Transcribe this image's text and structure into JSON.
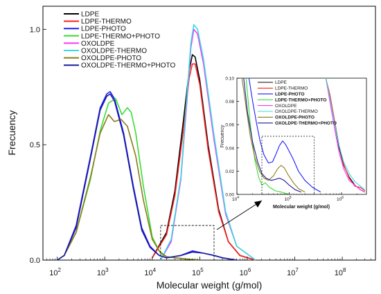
{
  "chart_data": [
    {
      "type": "line",
      "title": "",
      "xlabel": "Molecular weight (g/mol)",
      "ylabel": "Frecuency",
      "xscale": "log",
      "xlim": [
        50,
        500000000
      ],
      "ylim": [
        0,
        1.1
      ],
      "x_ticks": [
        {
          "value": 100,
          "base": "10",
          "exp": "2"
        },
        {
          "value": 1000,
          "base": "10",
          "exp": "3"
        },
        {
          "value": 10000,
          "base": "10",
          "exp": "4"
        },
        {
          "value": 100000,
          "base": "10",
          "exp": "5"
        },
        {
          "value": 1000000,
          "base": "10",
          "exp": "6"
        },
        {
          "value": 10000000,
          "base": "10",
          "exp": "7"
        },
        {
          "value": 100000000,
          "base": "10",
          "exp": "8"
        }
      ],
      "y_ticks": [
        {
          "value": 0,
          "label": "0.0"
        },
        {
          "value": 0.5,
          "label": "0.5"
        },
        {
          "value": 1.0,
          "label": "1.0"
        }
      ],
      "legend_position": "top-left",
      "series": [
        {
          "name": "LDPE",
          "color": "#000000",
          "x": [
            10000,
            20000,
            30000,
            45000,
            60000,
            70000,
            80000,
            100000,
            150000,
            250000,
            400000,
            700000,
            1500000
          ],
          "y": [
            0.01,
            0.12,
            0.3,
            0.6,
            0.82,
            0.89,
            0.88,
            0.78,
            0.5,
            0.22,
            0.08,
            0.02,
            0.0
          ]
        },
        {
          "name": "LDPE-THERMO",
          "color": "#ff2020",
          "x": [
            10000,
            20000,
            30000,
            45000,
            60000,
            70000,
            80000,
            100000,
            150000,
            250000,
            400000,
            700000,
            1500000
          ],
          "y": [
            0.01,
            0.11,
            0.28,
            0.56,
            0.79,
            0.85,
            0.85,
            0.76,
            0.48,
            0.21,
            0.08,
            0.02,
            0.0
          ]
        },
        {
          "name": "LDPE-PHOTO",
          "color": "#1a1aff",
          "x": [
            100,
            140,
            250,
            500,
            800,
            1100,
            1300,
            1600,
            2500,
            4000,
            6000,
            9000,
            14000,
            20000,
            40000,
            70000,
            120000,
            200000,
            300000,
            600000
          ],
          "y": [
            0.0,
            0.02,
            0.15,
            0.45,
            0.66,
            0.72,
            0.73,
            0.7,
            0.55,
            0.32,
            0.14,
            0.06,
            0.02,
            0.01,
            0.02,
            0.04,
            0.03,
            0.02,
            0.01,
            0.0
          ]
        },
        {
          "name": "LDPE-THERMO+PHOTO",
          "color": "#33dd33",
          "x": [
            100,
            140,
            250,
            500,
            800,
            1200,
            1700,
            2300,
            3000,
            3600,
            4500,
            6500,
            10000,
            14000,
            20000,
            30000,
            50000,
            100000
          ],
          "y": [
            0.0,
            0.02,
            0.12,
            0.35,
            0.56,
            0.68,
            0.7,
            0.63,
            0.66,
            0.64,
            0.55,
            0.32,
            0.1,
            0.04,
            0.015,
            0.01,
            0.005,
            0.0
          ]
        },
        {
          "name": "OXOLDPE",
          "color": "#ff33ff",
          "x": [
            15000,
            25000,
            40000,
            55000,
            65000,
            75000,
            90000,
            120000,
            200000,
            350000,
            600000,
            1500000
          ],
          "y": [
            0.0,
            0.08,
            0.35,
            0.72,
            0.92,
            1.0,
            0.98,
            0.85,
            0.52,
            0.2,
            0.06,
            0.0
          ]
        },
        {
          "name": "OXOLDPE-THERMO",
          "color": "#33dddd",
          "x": [
            15000,
            25000,
            40000,
            55000,
            65000,
            75000,
            90000,
            120000,
            200000,
            350000,
            600000,
            1500000
          ],
          "y": [
            0.0,
            0.09,
            0.36,
            0.74,
            0.94,
            1.02,
            1.0,
            0.87,
            0.54,
            0.21,
            0.06,
            0.0
          ]
        },
        {
          "name": "OXOLDPE-PHOTO",
          "color": "#8b7a1a",
          "x": [
            100,
            140,
            250,
            500,
            800,
            1200,
            1600,
            2200,
            3000,
            4500,
            6500,
            10000,
            15000,
            20000,
            30000,
            50000,
            100000
          ],
          "y": [
            0.0,
            0.02,
            0.12,
            0.36,
            0.55,
            0.63,
            0.6,
            0.61,
            0.58,
            0.45,
            0.26,
            0.09,
            0.03,
            0.015,
            0.01,
            0.005,
            0.0
          ]
        },
        {
          "name": "OXOLDPE-THERMO+PHOTO",
          "color": "#1a1a99",
          "x": [
            100,
            140,
            250,
            500,
            800,
            1100,
            1300,
            1600,
            2500,
            4000,
            6000,
            9000,
            14000,
            20000,
            40000,
            70000,
            120000,
            200000,
            300000,
            600000
          ],
          "y": [
            0.0,
            0.02,
            0.14,
            0.44,
            0.65,
            0.71,
            0.72,
            0.69,
            0.54,
            0.31,
            0.13,
            0.055,
            0.02,
            0.01,
            0.02,
            0.035,
            0.03,
            0.02,
            0.01,
            0.0
          ]
        }
      ],
      "zoom_box": {
        "x": [
          15000,
          200000
        ],
        "y": [
          0.0,
          0.15
        ]
      }
    },
    {
      "type": "line",
      "title": "",
      "inset": true,
      "xlabel": "Molecular weight (g/mol)",
      "ylabel": "Frecuency",
      "xscale": "log",
      "xlim": [
        10000,
        3000000
      ],
      "ylim": [
        0,
        0.1
      ],
      "x_ticks": [
        {
          "value": 10000,
          "base": "10",
          "exp": "4"
        },
        {
          "value": 100000,
          "base": "10",
          "exp": "5"
        },
        {
          "value": 1000000,
          "base": "10",
          "exp": "6"
        }
      ],
      "y_ticks": [
        {
          "value": 0.0,
          "label": "0.00"
        },
        {
          "value": 0.02,
          "label": "0.02"
        },
        {
          "value": 0.04,
          "label": "0.04"
        },
        {
          "value": 0.06,
          "label": "0.06"
        },
        {
          "value": 0.08,
          "label": "0.08"
        },
        {
          "value": 0.1,
          "label": "0.10"
        }
      ],
      "legend_position": "top-left",
      "series": [
        {
          "name": "LDPE",
          "color": "#000000",
          "x": [
            500000,
            600000,
            750000,
            900000,
            1100000,
            1400000,
            1800000,
            2300000,
            2800000
          ],
          "y": [
            0.1,
            0.085,
            0.06,
            0.04,
            0.025,
            0.015,
            0.008,
            0.004,
            0.002
          ]
        },
        {
          "name": "LDPE-THERMO",
          "color": "#ff2020",
          "x": [
            500000,
            600000,
            750000,
            900000,
            1100000,
            1400000,
            1800000,
            2300000,
            2800000
          ],
          "y": [
            0.1,
            0.086,
            0.062,
            0.042,
            0.026,
            0.014,
            0.007,
            0.006,
            0.003
          ]
        },
        {
          "name": "LDPE-PHOTO",
          "color": "#1a1aff",
          "x": [
            17000,
            20000,
            24000,
            28000,
            33000,
            40000,
            48000,
            55000,
            65000,
            75000,
            85000,
            100000,
            120000,
            150000,
            200000,
            280000,
            400000
          ],
          "y": [
            0.1,
            0.08,
            0.06,
            0.045,
            0.034,
            0.027,
            0.028,
            0.034,
            0.042,
            0.046,
            0.043,
            0.037,
            0.03,
            0.02,
            0.012,
            0.006,
            0.002
          ]
        },
        {
          "name": "LDPE-THERMO+PHOTO",
          "color": "#33dd33",
          "x": [
            15000,
            18000,
            22000,
            26000,
            30000,
            35000,
            42000,
            55000,
            70000,
            100000
          ],
          "y": [
            0.1,
            0.06,
            0.03,
            0.015,
            0.008,
            0.01,
            0.006,
            0.003,
            0.002,
            0.0
          ]
        },
        {
          "name": "OXOLDPE",
          "color": "#ff33ff",
          "x": [
            500000,
            600000,
            750000,
            900000,
            1100000,
            1400000,
            1800000,
            2300000,
            2800000
          ],
          "y": [
            0.1,
            0.08,
            0.055,
            0.036,
            0.022,
            0.012,
            0.008,
            0.004,
            0.002
          ]
        },
        {
          "name": "OXOLDPE-THERMO",
          "color": "#33dddd",
          "x": [
            500000,
            600000,
            750000,
            900000,
            1100000,
            1400000,
            1800000,
            2300000,
            2800000
          ],
          "y": [
            0.1,
            0.083,
            0.06,
            0.042,
            0.028,
            0.018,
            0.011,
            0.007,
            0.004
          ]
        },
        {
          "name": "OXOLDPE-PHOTO",
          "color": "#8b7a1a",
          "x": [
            12500,
            15000,
            18000,
            22000,
            27000,
            33000,
            40000,
            50000,
            60000,
            70000,
            80000,
            95000,
            120000,
            150000,
            200000
          ],
          "y": [
            0.1,
            0.075,
            0.05,
            0.032,
            0.02,
            0.014,
            0.012,
            0.016,
            0.022,
            0.025,
            0.023,
            0.017,
            0.01,
            0.005,
            0.002
          ]
        },
        {
          "name": "OXOLDPE-THERMO+PHOTO",
          "color": "#1a1a99",
          "x": [
            13500,
            16000,
            20000,
            25000,
            30000,
            36000,
            45000,
            55000,
            65000,
            80000,
            100000,
            130000,
            170000
          ],
          "y": [
            0.1,
            0.07,
            0.045,
            0.028,
            0.018,
            0.014,
            0.012,
            0.013,
            0.014,
            0.012,
            0.008,
            0.004,
            0.002
          ]
        }
      ],
      "zoom_box": {
        "x": [
          30000,
          300000
        ],
        "y": [
          0.0,
          0.05
        ]
      }
    }
  ]
}
